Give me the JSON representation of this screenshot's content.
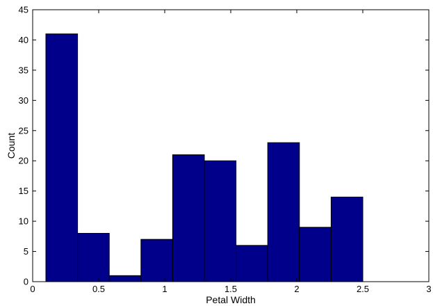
{
  "chart_data": {
    "type": "bar",
    "title": "",
    "xlabel": "Petal Width",
    "ylabel": "Count",
    "xlim": [
      0,
      3
    ],
    "ylim": [
      0,
      45
    ],
    "x_ticks": [
      "0",
      "0.5",
      "1",
      "1.5",
      "2",
      "2.5",
      "3"
    ],
    "y_ticks": [
      "0",
      "5",
      "10",
      "15",
      "20",
      "25",
      "30",
      "35",
      "40",
      "45"
    ],
    "bins": [
      {
        "x_start": 0.1,
        "x_end": 0.34,
        "value": 41
      },
      {
        "x_start": 0.34,
        "x_end": 0.58,
        "value": 8
      },
      {
        "x_start": 0.58,
        "x_end": 0.82,
        "value": 1
      },
      {
        "x_start": 0.82,
        "x_end": 1.06,
        "value": 7
      },
      {
        "x_start": 1.06,
        "x_end": 1.3,
        "value": 21
      },
      {
        "x_start": 1.3,
        "x_end": 1.54,
        "value": 20
      },
      {
        "x_start": 1.54,
        "x_end": 1.78,
        "value": 6
      },
      {
        "x_start": 1.78,
        "x_end": 2.02,
        "value": 23
      },
      {
        "x_start": 2.02,
        "x_end": 2.26,
        "value": 9
      },
      {
        "x_start": 2.26,
        "x_end": 2.5,
        "value": 14
      }
    ],
    "grid": false,
    "bar_color": "#00008b"
  }
}
